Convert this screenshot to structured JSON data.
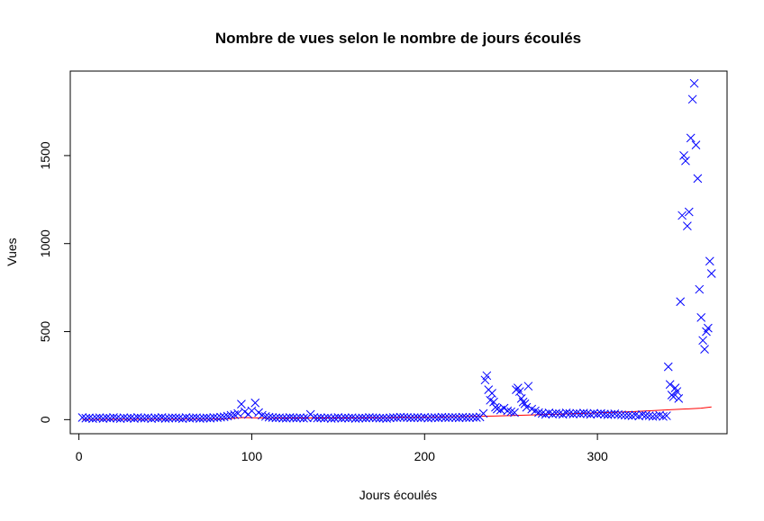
{
  "chart_data": {
    "type": "scatter",
    "title": "Nombre de vues selon le nombre de jours écoulés",
    "xlabel": "Jours écoulés",
    "ylabel": "Vues",
    "xlim": [
      -5,
      375
    ],
    "ylim": [
      -80,
      1980
    ],
    "x_ticks": [
      0,
      100,
      200,
      300
    ],
    "y_ticks": [
      0,
      500,
      1000,
      1500
    ],
    "grid": false,
    "legend": "none",
    "point_marker": "x",
    "point_color": "#0000ff",
    "trend_color": "#ff0000",
    "series": [
      {
        "x": [
          2,
          4,
          6,
          8,
          10,
          12,
          14,
          16,
          18,
          20,
          22,
          24,
          26,
          28,
          30,
          32,
          34,
          36,
          38,
          40,
          42,
          44,
          46,
          48,
          50,
          52,
          54,
          56,
          58,
          60,
          62,
          64,
          66,
          68,
          70,
          72,
          74,
          76,
          78,
          80,
          82,
          84,
          86,
          88,
          90,
          92,
          94,
          96,
          98,
          100,
          102,
          104,
          106,
          108,
          110,
          112,
          114,
          116,
          118,
          120,
          122,
          124,
          126,
          128,
          130,
          132,
          134,
          136,
          138,
          140,
          142,
          144,
          146,
          148,
          150,
          152,
          154,
          156,
          158,
          160,
          162,
          164,
          166,
          168,
          170,
          172,
          174,
          176,
          178,
          180,
          182,
          184,
          186,
          188,
          190,
          192,
          194,
          196,
          198,
          200,
          202,
          204,
          206,
          208,
          210,
          212,
          214,
          216,
          218,
          220,
          222,
          224,
          226,
          228,
          230,
          232,
          234,
          235,
          236,
          237,
          238,
          239,
          240,
          241,
          242,
          244,
          246,
          248,
          250,
          252,
          253,
          254,
          255,
          256,
          257,
          258,
          259,
          260,
          262,
          264,
          266,
          268,
          270,
          272,
          274,
          276,
          278,
          280,
          282,
          284,
          286,
          288,
          290,
          292,
          294,
          296,
          298,
          300,
          302,
          304,
          306,
          308,
          310,
          312,
          314,
          316,
          318,
          320,
          322,
          324,
          326,
          328,
          330,
          332,
          334,
          336,
          338,
          340,
          341,
          342,
          343,
          344,
          345,
          346,
          347,
          348,
          349,
          350,
          351,
          352,
          353,
          354,
          355,
          356,
          357,
          358,
          359,
          360,
          361,
          362,
          363,
          364,
          365,
          366
        ],
        "y": [
          12,
          8,
          10,
          6,
          9,
          11,
          7,
          10,
          8,
          12,
          9,
          6,
          11,
          8,
          10,
          7,
          12,
          9,
          8,
          11,
          6,
          10,
          9,
          12,
          7,
          8,
          11,
          10,
          9,
          6,
          12,
          8,
          10,
          11,
          7,
          9,
          10,
          8,
          12,
          11,
          14,
          16,
          20,
          25,
          28,
          35,
          88,
          45,
          30,
          50,
          95,
          40,
          25,
          18,
          14,
          12,
          10,
          11,
          9,
          8,
          12,
          10,
          9,
          11,
          8,
          10,
          30,
          12,
          9,
          10,
          8,
          11,
          7,
          9,
          12,
          8,
          10,
          9,
          11,
          7,
          8,
          10,
          9,
          12,
          11,
          10,
          8,
          9,
          7,
          10,
          12,
          11,
          14,
          13,
          12,
          10,
          11,
          12,
          10,
          13,
          9,
          11,
          12,
          10,
          14,
          12,
          11,
          13,
          12,
          10,
          14,
          12,
          11,
          13,
          12,
          15,
          35,
          225,
          250,
          170,
          110,
          150,
          100,
          70,
          60,
          55,
          65,
          50,
          45,
          40,
          170,
          180,
          160,
          120,
          100,
          90,
          70,
          190,
          60,
          50,
          40,
          35,
          30,
          38,
          32,
          36,
          34,
          30,
          38,
          35,
          32,
          36,
          33,
          37,
          34,
          30,
          36,
          32,
          35,
          31,
          28,
          30,
          33,
          29,
          27,
          25,
          24,
          22,
          26,
          20,
          28,
          24,
          22,
          18,
          20,
          25,
          18,
          22,
          300,
          200,
          140,
          130,
          180,
          160,
          120,
          670,
          1160,
          1500,
          1470,
          1100,
          1180,
          1600,
          1820,
          1910,
          1560,
          1370,
          740,
          580,
          450,
          400,
          500,
          520,
          900,
          830
        ]
      },
      {
        "trend_x": [
          2,
          85,
          95,
          110,
          150,
          200,
          240,
          280,
          320,
          360,
          366
        ],
        "trend_y": [
          2,
          4,
          12,
          8,
          10,
          14,
          20,
          32,
          45,
          65,
          72
        ]
      }
    ]
  }
}
